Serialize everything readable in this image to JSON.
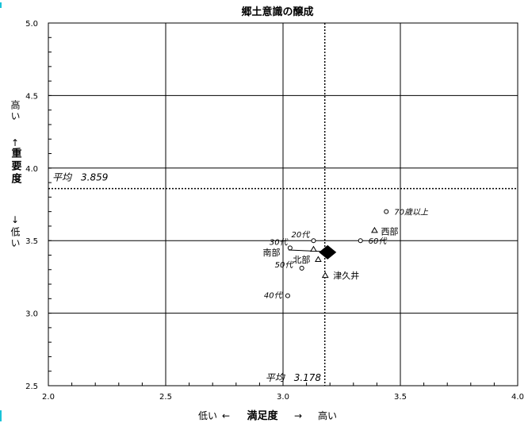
{
  "chart_data": {
    "type": "scatter",
    "title": "郷土意識の醸成",
    "xlabel": {
      "low": "低い",
      "arrow_left": "←",
      "main": "満足度",
      "arrow_right": "→",
      "high": "高い"
    },
    "ylabel": {
      "high": "高い",
      "up": "↑",
      "main": "重要度",
      "down": "↓",
      "low": "低い"
    },
    "xlim": [
      2.0,
      4.0
    ],
    "ylim": [
      2.5,
      5.0
    ],
    "xticks": [
      "2.0",
      "2.5",
      "3.0",
      "3.5",
      "4.0"
    ],
    "yticks": [
      "2.5",
      "3.0",
      "3.5",
      "4.0",
      "4.5",
      "5.0"
    ],
    "grid": true,
    "average": {
      "x": 3.178,
      "x_label": "平均　3.178",
      "y": 3.859,
      "y_label": "平均　3.859"
    },
    "overall": {
      "x": 3.19,
      "y": 3.42
    },
    "series": [
      {
        "group": "age",
        "marker": "circle",
        "points": [
          {
            "label": "20代",
            "x": 3.13,
            "y": 3.5
          },
          {
            "label": "30代",
            "x": 3.03,
            "y": 3.45
          },
          {
            "label": "40代",
            "x": 3.02,
            "y": 3.12
          },
          {
            "label": "50代",
            "x": 3.08,
            "y": 3.31
          },
          {
            "label": "60代",
            "x": 3.33,
            "y": 3.5
          },
          {
            "label": "70歳以上",
            "x": 3.44,
            "y": 3.7
          }
        ]
      },
      {
        "group": "area",
        "marker": "triangle",
        "points": [
          {
            "label": "南部",
            "x": 3.13,
            "y": 3.44
          },
          {
            "label": "北部",
            "x": 3.15,
            "y": 3.37
          },
          {
            "label": "西部",
            "x": 3.39,
            "y": 3.57
          },
          {
            "label": "津久井",
            "x": 3.18,
            "y": 3.26
          }
        ]
      }
    ]
  }
}
